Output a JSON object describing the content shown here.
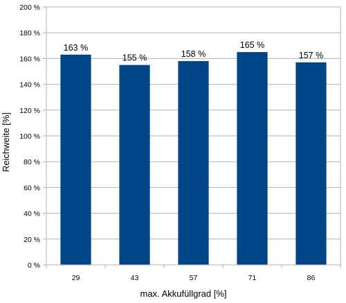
{
  "chart_data": {
    "type": "bar",
    "categories": [
      "29",
      "43",
      "57",
      "71",
      "86"
    ],
    "values": [
      163,
      155,
      158,
      165,
      157
    ],
    "data_labels": [
      "163 %",
      "155 %",
      "158 %",
      "165 %",
      "157 %"
    ],
    "xlabel": "max. Akkufüllgrad [%]",
    "ylabel": "Reichweite [%]",
    "ylim": [
      0,
      200
    ],
    "y_ticks": [
      0,
      20,
      40,
      60,
      80,
      100,
      120,
      140,
      160,
      180,
      200
    ],
    "y_tick_labels": [
      "0 %",
      "20 %",
      "40 %",
      "60 %",
      "80 %",
      "100 %",
      "120 %",
      "140 %",
      "160 %",
      "180 %",
      "200 %"
    ],
    "grid": true,
    "bar_color": "#004586"
  }
}
